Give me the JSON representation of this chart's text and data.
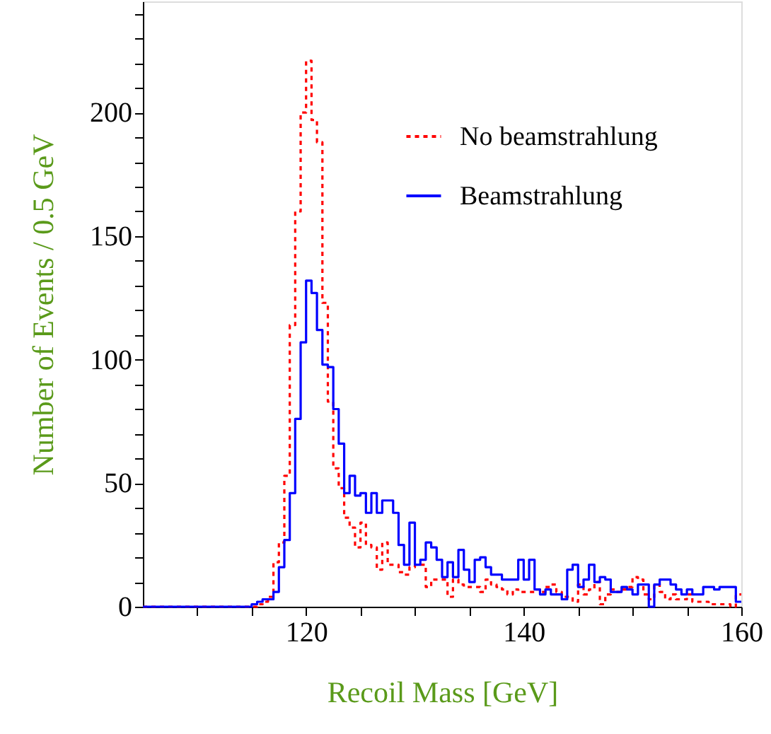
{
  "chart_data": {
    "type": "histogram",
    "xlabel": "Recoil Mass  [GeV]",
    "ylabel": "Number of Events / 0.5 GeV",
    "bins": [
      105,
      105.5,
      106,
      106.5,
      107,
      107.5,
      108,
      108.5,
      109,
      109.5,
      110,
      110.5,
      111,
      111.5,
      112,
      112.5,
      113,
      113.5,
      114,
      114.5,
      115,
      115.5,
      116,
      116.5,
      117,
      117.5,
      118,
      118.5,
      119,
      119.5,
      120,
      120.5,
      121,
      121.5,
      122,
      122.5,
      123,
      123.5,
      124,
      124.5,
      125,
      125.5,
      126,
      126.5,
      127,
      127.5,
      128,
      128.5,
      129,
      129.5,
      130,
      130.5,
      131,
      131.5,
      132,
      132.5,
      133,
      133.5,
      134,
      134.5,
      135,
      135.5,
      136,
      136.5,
      137,
      137.5,
      138,
      138.5,
      139,
      139.5,
      140,
      140.5,
      141,
      141.5,
      142,
      142.5,
      143,
      143.5,
      144,
      144.5,
      145,
      145.5,
      146,
      146.5,
      147,
      147.5,
      148,
      148.5,
      149,
      149.5,
      150,
      150.5,
      151,
      151.5,
      152,
      152.5,
      153,
      153.5,
      154,
      154.5,
      155,
      155.5,
      156,
      156.5,
      157,
      157.5,
      158,
      158.5,
      159,
      159.5,
      160
    ],
    "series": [
      {
        "name": "No beamstrahlung",
        "color": "#ff0000",
        "line_style": "dotted",
        "values": [
          0,
          0,
          0,
          0,
          0,
          0,
          0,
          0,
          0,
          0,
          0,
          0,
          0,
          0,
          0,
          0,
          0,
          0,
          0,
          0,
          0,
          1,
          2,
          4,
          18,
          26,
          53,
          114,
          160,
          200,
          221,
          197,
          188,
          123,
          83,
          56,
          48,
          36,
          32,
          24,
          34,
          25,
          24,
          15,
          26,
          17,
          17,
          14,
          13,
          16,
          17,
          17,
          8,
          11,
          11,
          11,
          4,
          11,
          9,
          8,
          8,
          8,
          6,
          11,
          9,
          8,
          7,
          5,
          7,
          6,
          6,
          6,
          7,
          6,
          8,
          9,
          6,
          4,
          4,
          2,
          9,
          5,
          7,
          10,
          1,
          5,
          7,
          6,
          7,
          8,
          12,
          11,
          5,
          3,
          9,
          6,
          3,
          5,
          3,
          3,
          5,
          2,
          2,
          2,
          1,
          1,
          1,
          1,
          0,
          5
        ]
      },
      {
        "name": "Beamstrahlung",
        "color": "#0000ff",
        "line_style": "solid",
        "values": [
          0,
          0,
          0,
          0,
          0,
          0,
          0,
          0,
          0,
          0,
          0,
          0,
          0,
          0,
          0,
          0,
          0,
          0,
          0,
          0,
          1,
          2,
          3,
          3,
          6,
          16,
          27,
          46,
          76,
          107,
          132,
          127,
          112,
          98,
          97,
          80,
          66,
          46,
          53,
          45,
          46,
          38,
          46,
          38,
          43,
          43,
          38,
          25,
          17,
          34,
          17,
          19,
          26,
          24,
          19,
          12,
          18,
          12,
          23,
          15,
          10,
          19,
          20,
          16,
          13,
          13,
          11,
          11,
          11,
          19,
          11,
          19,
          7,
          5,
          7,
          5,
          5,
          3,
          15,
          17,
          8,
          11,
          17,
          10,
          12,
          11,
          6,
          6,
          8,
          7,
          5,
          9,
          9,
          0,
          9,
          11,
          11,
          9,
          7,
          5,
          7,
          5,
          5,
          8,
          8,
          7,
          8,
          8,
          8,
          2
        ]
      }
    ],
    "xlim": [
      105,
      160
    ],
    "xticks": [
      {
        "value": 110,
        "label": null
      },
      {
        "value": 115,
        "label": null
      },
      120,
      {
        "value": 125,
        "label": null
      },
      {
        "value": 130,
        "label": null
      },
      {
        "value": 135,
        "label": null
      },
      140,
      {
        "value": 145,
        "label": null
      },
      {
        "value": 150,
        "label": null
      },
      {
        "value": 155,
        "label": null
      },
      160
    ],
    "ylim": [
      0,
      245
    ],
    "yticks": [
      0,
      {
        "value": 10,
        "label": null
      },
      {
        "value": 20,
        "label": null
      },
      {
        "value": 30,
        "label": null
      },
      {
        "value": 40,
        "label": null
      },
      50,
      {
        "value": 60,
        "label": null
      },
      {
        "value": 70,
        "label": null
      },
      {
        "value": 80,
        "label": null
      },
      {
        "value": 90,
        "label": null
      },
      100,
      {
        "value": 110,
        "label": null
      },
      {
        "value": 120,
        "label": null
      },
      {
        "value": 130,
        "label": null
      },
      {
        "value": 140,
        "label": null
      },
      150,
      {
        "value": 160,
        "label": null
      },
      {
        "value": 170,
        "label": null
      },
      {
        "value": 180,
        "label": null
      },
      {
        "value": 190,
        "label": null
      },
      200,
      {
        "value": 210,
        "label": null
      },
      {
        "value": 220,
        "label": null
      },
      {
        "value": 230,
        "label": null
      },
      {
        "value": 240,
        "label": null
      }
    ],
    "grid": false,
    "legend": "top right"
  }
}
